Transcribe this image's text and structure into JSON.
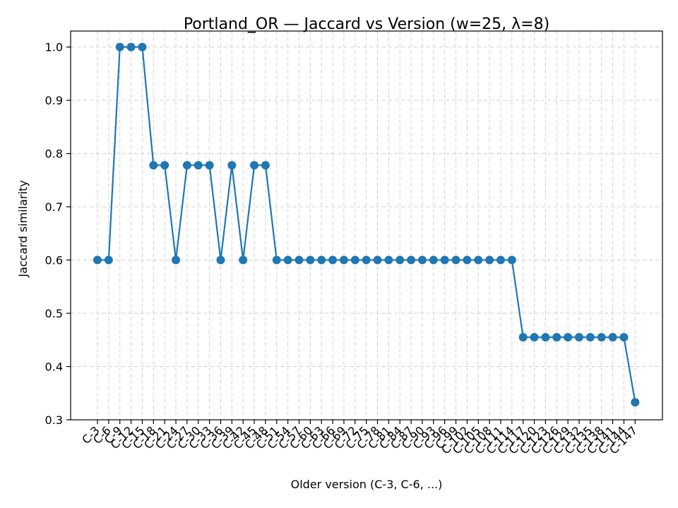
{
  "chart_data": {
    "type": "line",
    "title": "Portland_OR — Jaccard vs Version (w=25, λ=8)",
    "xlabel": "Older version (C-3, C-6, ...)",
    "ylabel": "Jaccard similarity",
    "ylim": [
      0.3,
      1.03
    ],
    "yticks": [
      "0.3",
      "0.4",
      "0.5",
      "0.6",
      "0.7",
      "0.8",
      "0.9",
      "1.0"
    ],
    "grid": true,
    "series_color": "#1f77b4",
    "categories": [
      "C-3",
      "C-6",
      "C-9",
      "C-12",
      "C-15",
      "C-18",
      "C-21",
      "C-24",
      "C-27",
      "C-30",
      "C-33",
      "C-36",
      "C-39",
      "C-42",
      "C-45",
      "C-48",
      "C-51",
      "C-54",
      "C-57",
      "C-60",
      "C-63",
      "C-66",
      "C-69",
      "C-72",
      "C-75",
      "C-78",
      "C-81",
      "C-84",
      "C-87",
      "C-90",
      "C-93",
      "C-96",
      "C-99",
      "C-102",
      "C-105",
      "C-108",
      "C-111",
      "C-114",
      "C-117",
      "C-120",
      "C-123",
      "C-126",
      "C-129",
      "C-132",
      "C-135",
      "C-138",
      "C-141",
      "C-144",
      "C-147"
    ],
    "values": [
      0.6,
      0.6,
      1.0,
      1.0,
      1.0,
      0.778,
      0.778,
      0.6,
      0.778,
      0.778,
      0.778,
      0.6,
      0.778,
      0.6,
      0.778,
      0.778,
      0.6,
      0.6,
      0.6,
      0.6,
      0.6,
      0.6,
      0.6,
      0.6,
      0.6,
      0.6,
      0.6,
      0.6,
      0.6,
      0.6,
      0.6,
      0.6,
      0.6,
      0.6,
      0.6,
      0.6,
      0.6,
      0.6,
      0.455,
      0.455,
      0.455,
      0.455,
      0.455,
      0.455,
      0.455,
      0.455,
      0.455,
      0.455,
      0.333
    ]
  }
}
